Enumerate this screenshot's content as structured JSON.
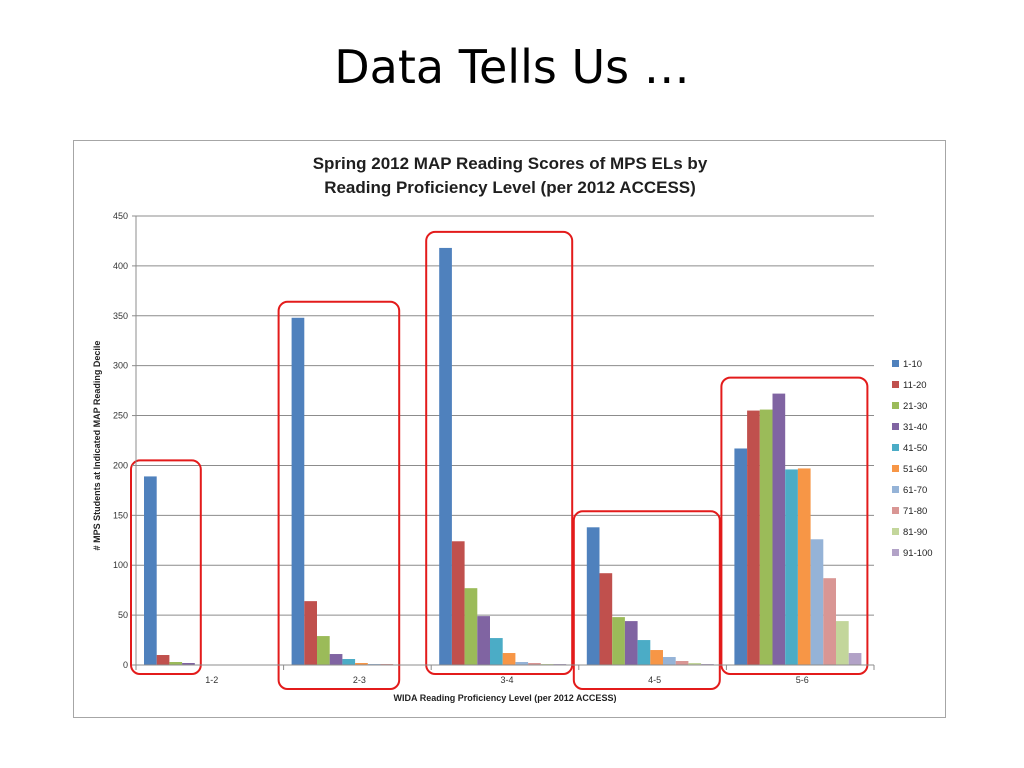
{
  "slide": {
    "title": "Data Tells Us …"
  },
  "chart_data": {
    "type": "bar",
    "title": [
      "Spring 2012 MAP Reading Scores of MPS ELs by",
      "Reading Proficiency Level (per 2012 ACCESS)"
    ],
    "xlabel": "WIDA Reading Proficiency Level (per 2012 ACCESS)",
    "ylabel": "# MPS Students at Indicated MAP Reading Decile",
    "ylim": [
      0,
      450
    ],
    "yticks": [
      0,
      50,
      100,
      150,
      200,
      250,
      300,
      350,
      400,
      450
    ],
    "grid": true,
    "legend_position": "right",
    "categories": [
      "1-2",
      "2-3",
      "3-4",
      "4-5",
      "5-6"
    ],
    "series": [
      {
        "name": "1-10",
        "color": "#4f81bd",
        "values": [
          189,
          348,
          418,
          138,
          217
        ]
      },
      {
        "name": "11-20",
        "color": "#c0504d",
        "values": [
          10,
          64,
          124,
          92,
          255
        ]
      },
      {
        "name": "21-30",
        "color": "#9bbb59",
        "values": [
          3,
          29,
          77,
          48,
          256
        ]
      },
      {
        "name": "31-40",
        "color": "#8064a2",
        "values": [
          2,
          11,
          49,
          44,
          272
        ]
      },
      {
        "name": "41-50",
        "color": "#4bacc6",
        "values": [
          0,
          6,
          27,
          25,
          196
        ]
      },
      {
        "name": "51-60",
        "color": "#f79646",
        "values": [
          0,
          2,
          12,
          15,
          197
        ]
      },
      {
        "name": "61-70",
        "color": "#95b3d7",
        "values": [
          0,
          1,
          3,
          8,
          126
        ]
      },
      {
        "name": "71-80",
        "color": "#d99694",
        "values": [
          0,
          1,
          2,
          4,
          87
        ]
      },
      {
        "name": "81-90",
        "color": "#c3d69b",
        "values": [
          0,
          0,
          1,
          2,
          44
        ]
      },
      {
        "name": "91-100",
        "color": "#b2a2c7",
        "values": [
          0,
          0,
          1,
          1,
          12
        ]
      }
    ],
    "highlight_color": "#e31b1b",
    "highlighted_categories": [
      "1-2",
      "2-3",
      "3-4",
      "4-5",
      "5-6"
    ]
  }
}
